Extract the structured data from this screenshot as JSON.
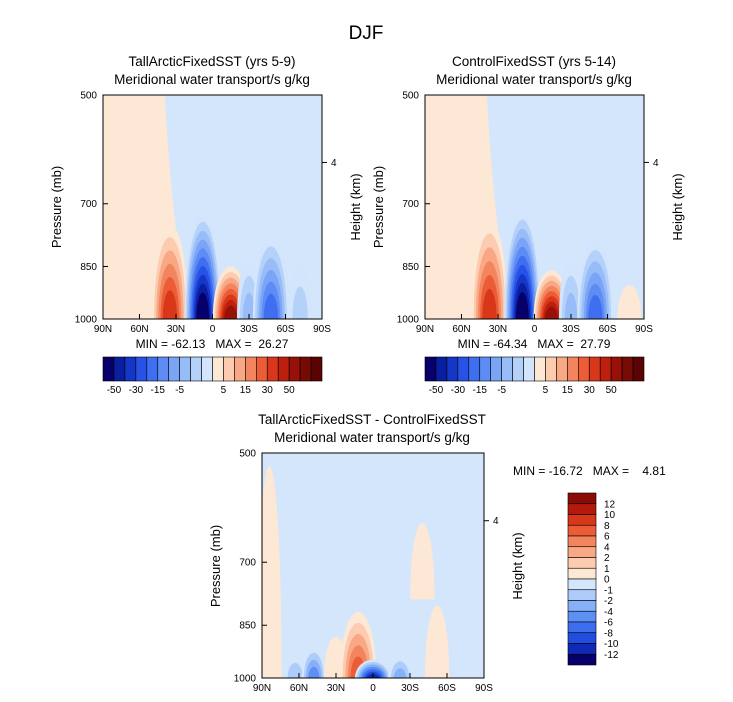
{
  "figure_title": "DJF",
  "colors": {
    "neg": [
      "#08006a",
      "#0a1ea0",
      "#1437c8",
      "#2852e6",
      "#3f6ef0",
      "#5d8cf4",
      "#7aa4f6",
      "#98bcf8",
      "#b4d1fa",
      "#d2e5fc"
    ],
    "pos": [
      "#fde7d5",
      "#fccbb0",
      "#f8a884",
      "#f3855e",
      "#ec5c36",
      "#d9371a",
      "#bd1f0e",
      "#981108",
      "#760a04",
      "#5a0302"
    ],
    "diff_neg": [
      "#08006a",
      "#0f2ab4",
      "#1f4ee0",
      "#3c6ff0",
      "#5e90f4",
      "#86b0f7",
      "#aeccfa",
      "#d4e6fc"
    ],
    "diff_pos": [
      "#fde7d5",
      "#fccbb0",
      "#f8a884",
      "#f3855e",
      "#ec5c36",
      "#d9371a",
      "#b31a0b",
      "#8a0c05"
    ]
  },
  "chart_data": [
    {
      "type": "heatmap",
      "title": "TallArcticFixedSST (yrs 5-9)",
      "subtitle": "Meridional water transport/s g/kg",
      "xlabel": "",
      "ylabel": "Pressure (mb)",
      "y2label": "Height (km)",
      "x_ticks": [
        "90N",
        "60N",
        "30N",
        "0",
        "30S",
        "60S",
        "90S"
      ],
      "y_ticks": [
        "500",
        "700",
        "850",
        "1000"
      ],
      "y2_ticks": [
        "4"
      ],
      "x_range": [
        90,
        -90
      ],
      "y_range_mb": [
        1000,
        500
      ],
      "stats": "MIN = -62.13   MAX =  26.27",
      "min": -62.13,
      "max": 26.27,
      "colorbar_labels": [
        "-50",
        "-30",
        "-15",
        "-5",
        "5",
        "15",
        "30",
        "50"
      ],
      "features": [
        {
          "lat": 82,
          "sign": "pos",
          "level": 0.55,
          "p_top": 580,
          "p_bot": 1000
        },
        {
          "lat": 52,
          "sign": "pos",
          "level": 0.9,
          "p_top": 755,
          "p_bot": 1000
        },
        {
          "lat": 35,
          "sign": "pos",
          "level": 5.5,
          "p_top": 745,
          "p_bot": 1000
        },
        {
          "lat": 8,
          "sign": "neg",
          "level": 10,
          "p_top": 720,
          "p_bot": 1000
        },
        {
          "lat": -15,
          "sign": "pos",
          "level": 8,
          "p_top": 850,
          "p_bot": 1000
        },
        {
          "lat": -30,
          "sign": "neg",
          "level": 2.5,
          "p_top": 830,
          "p_bot": 1000
        },
        {
          "lat": -48,
          "sign": "neg",
          "level": 6,
          "p_top": 770,
          "p_bot": 1000
        },
        {
          "lat": -72,
          "sign": "neg",
          "level": 2,
          "p_top": 840,
          "p_bot": 1000
        }
      ]
    },
    {
      "type": "heatmap",
      "title": "ControlFixedSST (yrs 5-14)",
      "subtitle": "Meridional water transport/s g/kg",
      "xlabel": "",
      "ylabel": "Pressure (mb)",
      "y2label": "Height (km)",
      "x_ticks": [
        "90N",
        "60N",
        "30N",
        "0",
        "30S",
        "60S",
        "90S"
      ],
      "y_ticks": [
        "500",
        "700",
        "850",
        "1000"
      ],
      "y2_ticks": [
        "4"
      ],
      "x_range": [
        90,
        -90
      ],
      "y_range_mb": [
        1000,
        500
      ],
      "stats": "MIN = -64.34   MAX =  27.79",
      "min": -64.34,
      "max": 27.79,
      "colorbar_labels": [
        "-50",
        "-30",
        "-15",
        "-5",
        "5",
        "15",
        "30",
        "50"
      ],
      "features": [
        {
          "lat": 82,
          "sign": "pos",
          "level": 0.55,
          "p_top": 580,
          "p_bot": 1000
        },
        {
          "lat": 52,
          "sign": "pos",
          "level": 0.9,
          "p_top": 755,
          "p_bot": 1000
        },
        {
          "lat": 37,
          "sign": "pos",
          "level": 5.5,
          "p_top": 735,
          "p_bot": 1000
        },
        {
          "lat": 10,
          "sign": "neg",
          "level": 10,
          "p_top": 715,
          "p_bot": 1000
        },
        {
          "lat": -14,
          "sign": "pos",
          "level": 8,
          "p_top": 860,
          "p_bot": 1000
        },
        {
          "lat": -30,
          "sign": "neg",
          "level": 2.5,
          "p_top": 830,
          "p_bot": 1000
        },
        {
          "lat": -50,
          "sign": "neg",
          "level": 6,
          "p_top": 780,
          "p_bot": 1000
        },
        {
          "lat": -78,
          "sign": "pos",
          "level": 0.5,
          "p_top": 900,
          "p_bot": 1000
        }
      ]
    },
    {
      "type": "heatmap",
      "title": "TallArcticFixedSST - ControlFixedSST",
      "subtitle": "Meridional water transport/s g/kg",
      "xlabel": "",
      "ylabel": "Pressure (mb)",
      "y2label": "Height (km)",
      "x_ticks": [
        "90N",
        "60N",
        "30N",
        "0",
        "30S",
        "60S",
        "90S"
      ],
      "y_ticks": [
        "500",
        "700",
        "850",
        "1000"
      ],
      "y2_ticks": [
        "4"
      ],
      "x_range": [
        90,
        -90
      ],
      "y_range_mb": [
        1000,
        500
      ],
      "stats": "MIN = -16.72   MAX =    4.81",
      "min": -16.72,
      "max": 4.81,
      "colorbar_labels": [
        "12",
        "10",
        "8",
        "6",
        "4",
        "2",
        "1",
        "0",
        "-1",
        "-2",
        "-4",
        "-6",
        "-8",
        "-10",
        "-12"
      ],
      "features": [
        {
          "lat": 84,
          "sign": "pos",
          "level": 0.5,
          "p_top": 520,
          "p_bot": 1000
        },
        {
          "lat": 63,
          "sign": "neg",
          "level": 2,
          "p_top": 920,
          "p_bot": 1000
        },
        {
          "lat": 48,
          "sign": "neg",
          "level": 4,
          "p_top": 905,
          "p_bot": 1000
        },
        {
          "lat": 30,
          "sign": "pos",
          "level": 1,
          "p_top": 880,
          "p_bot": 1000
        },
        {
          "lat": 12,
          "sign": "pos",
          "level": 5,
          "p_top": 815,
          "p_bot": 1000
        },
        {
          "lat": 0,
          "sign": "neg",
          "level": 7,
          "p_top": 945,
          "p_bot": 1000
        },
        {
          "lat": -22,
          "sign": "neg",
          "level": 3,
          "p_top": 930,
          "p_bot": 1000
        },
        {
          "lat": -52,
          "sign": "pos",
          "level": 1,
          "p_top": 800,
          "p_bot": 1000
        },
        {
          "lat": -40,
          "sign": "pos",
          "level": 0.5,
          "p_top": 620,
          "p_bot": 780
        }
      ]
    }
  ]
}
